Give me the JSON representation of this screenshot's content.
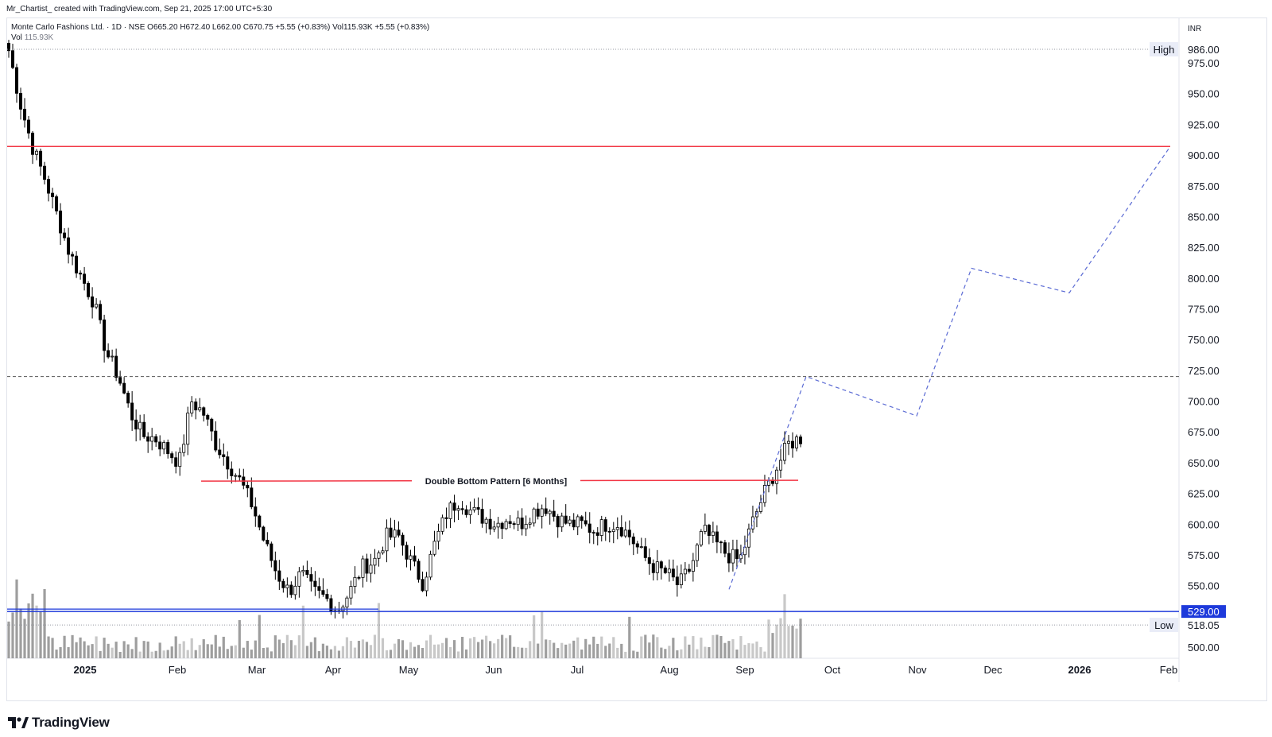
{
  "header": {
    "author_line": "Mr_Chartist_ created with TradingView.com, Sep 21, 2025 17:00 UTC+5:30"
  },
  "legend": {
    "symbol_line": "Monte Carlo Fashions Ltd. · 1D · NSE  O665.20  H672.40  L662.00  C670.75  +5.55 (+0.83%)  Vol115.93K  +5.55 (+0.83%)",
    "vol_label": "Vol",
    "vol_value": "115.93K"
  },
  "currency": "INR",
  "footer": {
    "brand": "TradingView"
  },
  "chart_data": {
    "type": "candlestick",
    "title": "Monte Carlo Fashions Ltd. · 1D · NSE",
    "y_axis": {
      "ticks": [
        "975.00",
        "950.00",
        "925.00",
        "900.00",
        "875.00",
        "850.00",
        "825.00",
        "800.00",
        "775.00",
        "750.00",
        "725.00",
        "700.00",
        "675.00",
        "650.00",
        "625.00",
        "600.00",
        "575.00",
        "550.00",
        "500.00"
      ],
      "range": [
        493,
        1000
      ]
    },
    "x_axis": {
      "labels": [
        "2025",
        "Feb",
        "Mar",
        "Apr",
        "May",
        "Jun",
        "Jul",
        "Aug",
        "Sep",
        "Oct",
        "Nov",
        "Dec",
        "2026",
        "Feb"
      ]
    },
    "price_labels": {
      "high": {
        "label": "High",
        "value": "986.00"
      },
      "support": {
        "value": "529.00"
      },
      "low": {
        "label": "Low",
        "value": "518.05"
      }
    },
    "annotations": {
      "pattern_text": "Double Bottom Pattern [6 Months]",
      "resistance_level": 907,
      "neckline_level": 635,
      "support_level": 529,
      "dashed_level": 720
    },
    "colors": {
      "candle": "#000000",
      "resistance": "#f23645",
      "support": "#1e3adb",
      "projection": "#5b6bd4",
      "volume": "#9e9e9e"
    },
    "projection_path": [
      [
        0,
        547
      ],
      [
        1,
        720
      ],
      [
        2,
        688
      ],
      [
        3,
        808
      ],
      [
        4,
        788
      ],
      [
        5,
        907
      ]
    ],
    "candle_key_path": [
      985,
      940,
      905,
      880,
      850,
      820,
      800,
      780,
      740,
      720,
      690,
      672,
      670,
      660,
      650,
      700,
      690,
      665,
      650,
      635,
      615,
      585,
      560,
      545,
      560,
      545,
      540,
      530,
      545,
      565,
      570,
      590,
      590,
      570,
      552,
      585,
      610,
      620,
      610,
      605,
      600,
      605,
      600,
      610,
      615,
      605,
      600,
      600,
      595,
      600,
      600,
      590,
      575,
      565,
      560,
      550,
      565,
      595,
      585,
      575,
      570,
      600,
      625,
      645,
      665,
      670
    ]
  }
}
